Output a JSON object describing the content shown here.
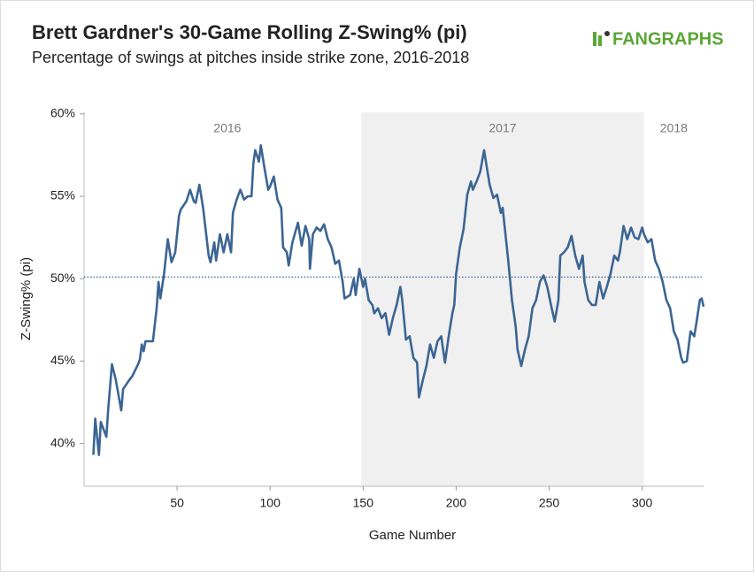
{
  "chart_data": {
    "type": "line",
    "title": "Brett Gardner's 30-Game Rolling Z-Swing% (pi)",
    "subtitle": "Percentage of swings at pitches inside strike zone, 2016-2018",
    "logo": "FANGRAPHS",
    "x_label": "Game Number",
    "y_label": "Z-Swing% (pi)",
    "xlim": [
      0,
      333
    ],
    "ylim": [
      37.4,
      60.1
    ],
    "xticks": [
      50,
      100,
      150,
      200,
      250,
      300
    ],
    "yticks": [
      {
        "value": 40,
        "label": "40%"
      },
      {
        "value": 45,
        "label": "45%"
      },
      {
        "value": 50,
        "label": "50%"
      },
      {
        "value": 55,
        "label": "55%"
      },
      {
        "value": 60,
        "label": "60%"
      }
    ],
    "reference_line": 50.1,
    "shaded_region": [
      149,
      301
    ],
    "annotations": [
      {
        "text": "2016",
        "x": 77
      },
      {
        "text": "2017",
        "x": 225
      },
      {
        "text": "2018",
        "x": 317
      }
    ],
    "color": "#3b6593",
    "x": [
      5,
      6,
      8,
      9,
      12,
      13,
      15,
      17,
      20,
      21,
      24,
      26,
      29,
      30,
      31,
      32,
      33,
      37,
      39,
      40,
      41,
      43,
      45,
      47,
      49,
      51,
      52,
      55,
      57,
      59,
      60,
      62,
      64,
      67,
      68,
      70,
      71,
      73,
      75,
      77,
      79,
      80,
      82,
      84,
      86,
      88,
      90,
      91,
      92,
      94,
      95,
      97,
      99,
      100,
      102,
      104,
      106,
      107,
      109,
      110,
      112,
      115,
      117,
      119,
      121,
      121.4,
      123,
      125,
      127,
      129,
      131,
      133,
      135,
      137,
      139,
      140,
      143,
      145,
      146,
      148,
      150,
      151,
      153,
      155,
      156,
      158,
      160,
      162,
      164,
      166,
      168,
      170,
      171,
      173,
      175,
      177,
      179,
      180,
      182,
      184,
      186,
      188,
      190,
      192,
      194,
      196,
      198,
      199,
      200,
      202,
      204,
      206,
      208,
      209,
      211,
      213,
      215,
      216,
      218,
      220,
      222,
      224,
      225,
      228,
      230,
      232,
      233,
      235,
      237,
      239,
      241,
      243,
      245,
      247,
      249,
      251,
      253,
      255,
      256,
      258,
      260,
      262,
      264,
      266,
      268,
      269,
      271,
      273,
      275,
      277,
      279,
      281,
      283,
      285,
      287,
      288,
      290,
      292,
      294,
      296,
      298,
      300,
      301,
      303,
      305,
      307,
      309,
      311,
      313,
      315,
      317,
      319,
      321,
      322,
      324,
      326,
      328,
      329,
      331,
      332,
      333
    ],
    "values": [
      39.3,
      41.5,
      39.3,
      41.3,
      40.4,
      42.1,
      44.8,
      43.9,
      42,
      43.3,
      43.8,
      44.1,
      44.8,
      45.1,
      46,
      45.6,
      46.2,
      46.2,
      48.2,
      49.8,
      48.8,
      50.3,
      52.4,
      51,
      51.6,
      53.8,
      54.2,
      54.7,
      55.4,
      54.7,
      54.6,
      55.7,
      54.3,
      51.4,
      51,
      52.2,
      51.1,
      52.7,
      51.6,
      52.7,
      51.6,
      54,
      54.8,
      55.4,
      54.8,
      55,
      55,
      57,
      57.8,
      57.1,
      58.1,
      56.7,
      55.4,
      55.6,
      56.2,
      54.8,
      54.3,
      51.9,
      51.6,
      50.8,
      52.2,
      53.4,
      52,
      53.2,
      52.4,
      50.6,
      52.7,
      53.1,
      52.9,
      53.3,
      52.4,
      51.9,
      50.9,
      51.1,
      49.8,
      48.8,
      49,
      50,
      49,
      50.6,
      49.5,
      50,
      48.7,
      48.4,
      47.9,
      48.2,
      47.6,
      47.9,
      46.6,
      47.6,
      48.4,
      49.5,
      48.7,
      46.3,
      46.5,
      45.2,
      44.9,
      42.8,
      43.8,
      44.7,
      46,
      45.2,
      46.2,
      46.5,
      44.9,
      46.5,
      47.9,
      48.4,
      50.3,
      51.9,
      53,
      55.1,
      55.9,
      55.4,
      55.9,
      56.5,
      57.8,
      57.1,
      55.7,
      54.9,
      55.1,
      54,
      54.3,
      51.1,
      48.7,
      47.1,
      45.7,
      44.7,
      45.7,
      46.5,
      48.2,
      48.7,
      49.8,
      50.2,
      49.5,
      48.4,
      47.4,
      48.7,
      51.4,
      51.6,
      51.9,
      52.6,
      51.4,
      50.6,
      51.4,
      49.8,
      48.7,
      48.4,
      48.4,
      49.8,
      48.8,
      49.5,
      50.3,
      51.4,
      51.1,
      51.6,
      53.2,
      52.4,
      53.1,
      52.5,
      52.4,
      53.1,
      52.7,
      52.2,
      52.4,
      51.1,
      50.6,
      49.8,
      48.7,
      48.2,
      46.8,
      46.3,
      45.2,
      44.9,
      45,
      46.8,
      46.5,
      47.2,
      48.7,
      48.8,
      48.3
    ]
  }
}
